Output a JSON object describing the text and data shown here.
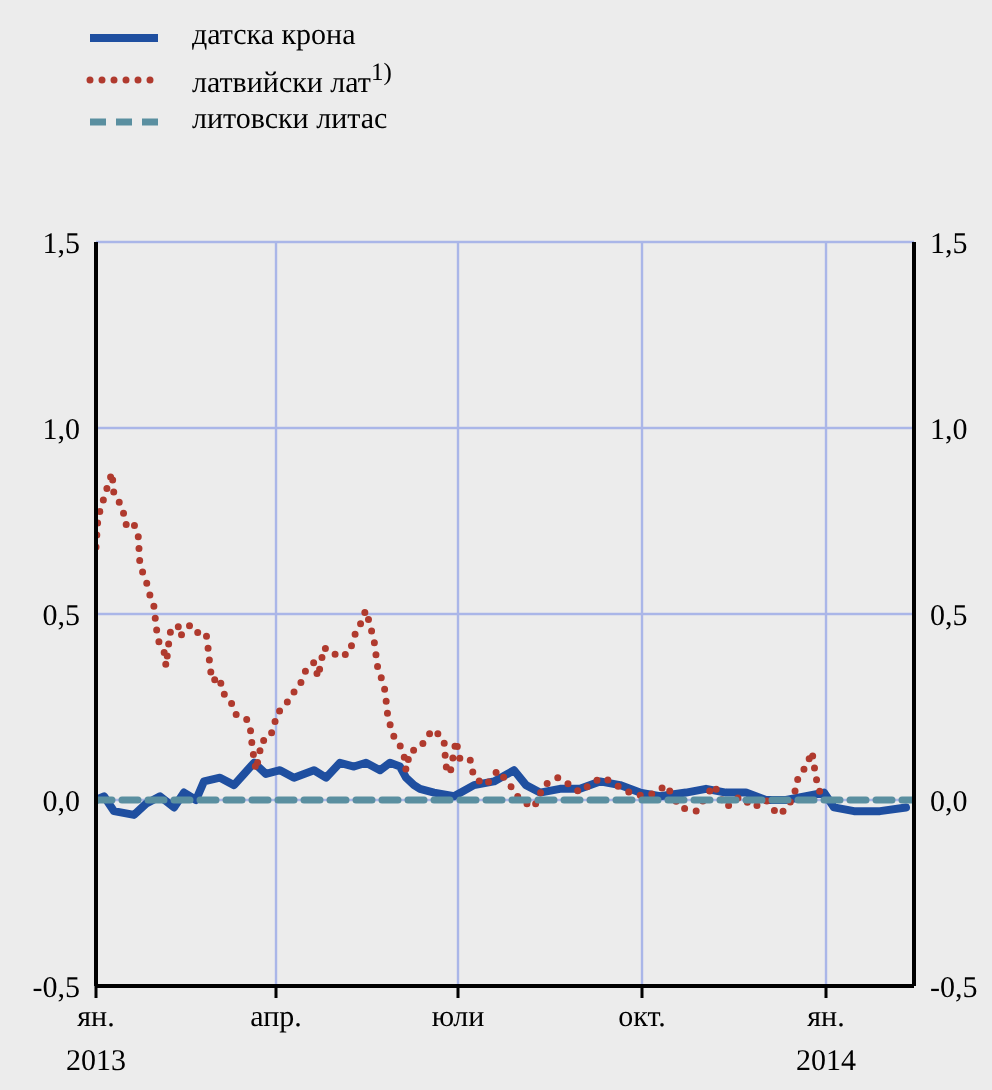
{
  "chart_data": {
    "type": "line",
    "legend": "top left",
    "grid": true,
    "xlim": [
      "2013-01-01",
      "2014-02-14"
    ],
    "xticks": [
      {
        "value": "2013-01-01",
        "label": "ян.\n2013"
      },
      {
        "value": "2013-04-01",
        "label": "апр."
      },
      {
        "value": "2013-07-01",
        "label": "юли"
      },
      {
        "value": "2013-10-01",
        "label": "окт."
      },
      {
        "value": "2014-01-01",
        "label": "ян.\n2014"
      }
    ],
    "ylim": [
      -0.5,
      1.5
    ],
    "yticks": [
      {
        "value": -0.5,
        "label": "-0,5"
      },
      {
        "value": 0,
        "label": "0,0"
      },
      {
        "value": 0.5,
        "label": "0,5"
      },
      {
        "value": 1,
        "label": "1,0"
      },
      {
        "value": 1.5,
        "label": "1,5"
      }
    ],
    "y2lim": [
      -0.5,
      1.5
    ],
    "y2ticks": [
      {
        "value": -0.5,
        "label": "-0,5"
      },
      {
        "value": 0,
        "label": "0,0"
      },
      {
        "value": 0.5,
        "label": "0,5"
      },
      {
        "value": 1,
        "label": "1,0"
      },
      {
        "value": 1.5,
        "label": "1,5"
      }
    ],
    "series": [
      {
        "name": "датска крона",
        "color": "#1f4fa0",
        "line_style": "solid",
        "x": [
          "2013-01-01",
          "2013-01-05",
          "2013-01-10",
          "2013-01-20",
          "2013-01-26",
          "2013-02-02",
          "2013-02-09",
          "2013-02-14",
          "2013-02-20",
          "2013-02-24",
          "2013-03-04",
          "2013-03-11",
          "2013-03-16",
          "2013-03-21",
          "2013-03-27",
          "2013-04-03",
          "2013-04-10",
          "2013-04-20",
          "2013-04-26",
          "2013-05-03",
          "2013-05-10",
          "2013-05-16",
          "2013-05-23",
          "2013-05-28",
          "2013-06-02",
          "2013-06-05",
          "2013-06-09",
          "2013-06-12",
          "2013-06-19",
          "2013-06-29",
          "2013-07-09",
          "2013-07-19",
          "2013-07-29",
          "2013-08-04",
          "2013-08-11",
          "2013-08-21",
          "2013-08-31",
          "2013-09-10",
          "2013-09-20",
          "2013-09-30",
          "2013-10-10",
          "2013-10-23",
          "2013-11-02",
          "2013-11-12",
          "2013-11-22",
          "2013-12-02",
          "2013-12-12",
          "2013-12-22",
          "2013-12-31",
          "2014-01-05",
          "2014-01-15",
          "2014-01-28",
          "2014-02-10"
        ],
        "values": [
          0,
          0.01,
          -0.03,
          -0.04,
          -0.01,
          0.01,
          -0.02,
          0.02,
          0,
          0.05,
          0.06,
          0.04,
          0.07,
          0.1,
          0.07,
          0.08,
          0.06,
          0.08,
          0.06,
          0.1,
          0.09,
          0.1,
          0.08,
          0.1,
          0.09,
          0.06,
          0.04,
          0.03,
          0.02,
          0.01,
          0.04,
          0.05,
          0.08,
          0.04,
          0.02,
          0.03,
          0.03,
          0.05,
          0.04,
          0.02,
          0.01,
          0.02,
          0.03,
          0.02,
          0.02,
          0,
          0,
          0.01,
          0.02,
          -0.02,
          -0.03,
          -0.03,
          -0.02
        ]
      },
      {
        "name": "латвийски лат$^{1)}$",
        "color": "#b03a2e",
        "line_style": "dotted",
        "x": [
          "2013-01-01",
          "2013-01-02",
          "2013-01-06",
          "2013-01-09",
          "2013-01-10",
          "2013-01-14",
          "2013-01-16",
          "2013-01-19",
          "2013-01-22",
          "2013-01-23",
          "2013-01-26",
          "2013-01-28",
          "2013-01-30",
          "2013-01-31",
          "2013-02-01",
          "2013-02-04",
          "2013-02-05",
          "2013-02-07",
          "2013-02-11",
          "2013-02-12",
          "2013-02-17",
          "2013-02-20",
          "2013-02-25",
          "2013-02-26",
          "2013-02-27",
          "2013-02-28",
          "2013-03-04",
          "2013-03-05",
          "2013-03-09",
          "2013-03-12",
          "2013-03-17",
          "2013-03-19",
          "2013-03-20",
          "2013-03-21",
          "2013-03-22",
          "2013-03-25",
          "2013-03-27",
          "2013-03-31",
          "2013-04-01",
          "2013-04-05",
          "2013-04-10",
          "2013-04-13",
          "2013-04-16",
          "2013-04-20",
          "2013-04-22",
          "2013-04-25",
          "2013-04-30",
          "2013-05-03",
          "2013-05-06",
          "2013-05-08",
          "2013-05-10",
          "2013-05-13",
          "2013-05-15",
          "2013-05-16",
          "2013-05-18",
          "2013-05-20",
          "2013-05-21",
          "2013-05-22",
          "2013-05-25",
          "2013-05-26",
          "2013-05-27",
          "2013-05-30",
          "2013-06-01",
          "2013-06-04",
          "2013-06-05",
          "2013-06-07",
          "2013-06-12",
          "2013-06-17",
          "2013-06-19",
          "2013-06-24",
          "2013-06-25",
          "2013-06-27",
          "2013-06-30",
          "2013-07-02",
          "2013-07-07",
          "2013-07-09",
          "2013-07-15",
          "2013-07-21",
          "2013-07-27",
          "2013-08-01",
          "2013-08-08",
          "2013-08-13",
          "2013-08-20",
          "2013-08-26",
          "2013-08-31",
          "2013-09-07",
          "2013-09-12",
          "2013-09-18",
          "2013-09-25",
          "2013-10-02",
          "2013-10-08",
          "2013-10-13",
          "2013-10-20",
          "2013-10-28",
          "2013-11-02",
          "2013-11-06",
          "2013-11-12",
          "2013-11-19",
          "2013-11-26",
          "2013-12-02",
          "2013-12-08",
          "2013-12-13",
          "2013-12-17",
          "2013-12-18",
          "2013-12-22",
          "2013-12-25",
          "2013-12-27",
          "2013-12-29"
        ],
        "values": [
          0.68,
          0.76,
          0.83,
          0.88,
          0.82,
          0.79,
          0.74,
          0.75,
          0.72,
          0.63,
          0.59,
          0.55,
          0.52,
          0.47,
          0.43,
          0.4,
          0.36,
          0.45,
          0.47,
          0.44,
          0.47,
          0.45,
          0.45,
          0.41,
          0.36,
          0.32,
          0.33,
          0.29,
          0.27,
          0.23,
          0.22,
          0.2,
          0.15,
          0.11,
          0.08,
          0.16,
          0.16,
          0.19,
          0.23,
          0.25,
          0.29,
          0.31,
          0.35,
          0.37,
          0.33,
          0.41,
          0.39,
          0.4,
          0.39,
          0.4,
          0.44,
          0.47,
          0.5,
          0.51,
          0.47,
          0.43,
          0.39,
          0.35,
          0.31,
          0.27,
          0.22,
          0.17,
          0.16,
          0.12,
          0.08,
          0.13,
          0.14,
          0.18,
          0.19,
          0.16,
          0.09,
          0.07,
          0.16,
          0.11,
          0.11,
          0.06,
          0.04,
          0.08,
          0.04,
          0,
          -0.02,
          0.04,
          0.06,
          0.04,
          0.02,
          0.05,
          0.06,
          0.04,
          0.02,
          0.01,
          0.02,
          0.04,
          -0.02,
          -0.03,
          0.01,
          0.04,
          -0.02,
          0.01,
          -0.02,
          0,
          -0.04,
          -0.02,
          0.03,
          0.06,
          0.09,
          0.13,
          0.06,
          0.02
        ]
      },
      {
        "name": "литовски литас",
        "color": "#5a8fa0",
        "line_style": "dashed",
        "x": [
          "2013-01-01",
          "2014-02-14"
        ],
        "values": [
          0,
          0
        ]
      }
    ]
  }
}
